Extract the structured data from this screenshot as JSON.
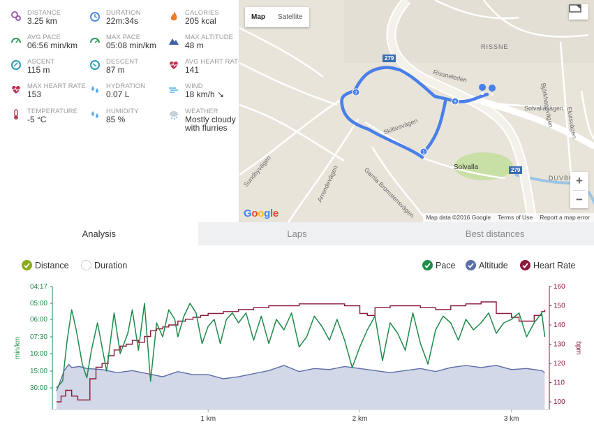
{
  "stats": [
    {
      "label": "DISTANCE",
      "value": "3.25 km",
      "icon": "distance-icon",
      "color": "#9a5fb0"
    },
    {
      "label": "DURATION",
      "value": "22m:34s",
      "icon": "duration-icon",
      "color": "#4a8de0"
    },
    {
      "label": "CALORIES",
      "value": "205 kcal",
      "icon": "calories-icon",
      "color": "#f07a2a"
    },
    {
      "label": "AVG PACE",
      "value": "06:56 min/km",
      "icon": "avg-pace-icon",
      "color": "#2f9a5a"
    },
    {
      "label": "MAX PACE",
      "value": "05:08 min/km",
      "icon": "max-pace-icon",
      "color": "#2f9a5a"
    },
    {
      "label": "MAX ALTITUDE",
      "value": "48 m",
      "icon": "altitude-icon",
      "color": "#3f5fa8"
    },
    {
      "label": "ASCENT",
      "value": "115 m",
      "icon": "ascent-icon",
      "color": "#2a9ab8"
    },
    {
      "label": "DESCENT",
      "value": "87 m",
      "icon": "descent-icon",
      "color": "#2a9ab8"
    },
    {
      "label": "AVG HEART RATE",
      "value": "141",
      "icon": "heart-icon",
      "color": "#c03050"
    },
    {
      "label": "MAX HEART RATE",
      "value": "153",
      "icon": "heart-rate-icon",
      "color": "#c03050"
    },
    {
      "label": "HYDRATION",
      "value": "0.07 L",
      "icon": "hydration-icon",
      "color": "#5aa8e8"
    },
    {
      "label": "WIND",
      "value": "18 km/h ↘",
      "icon": "wind-icon",
      "color": "#4ab0e0"
    },
    {
      "label": "TEMPERATURE",
      "value": "-5 °C",
      "icon": "thermometer-icon",
      "color": "#b04050"
    },
    {
      "label": "HUMIDITY",
      "value": "85 %",
      "icon": "humidity-icon",
      "color": "#5aa8e8"
    },
    {
      "label": "WEATHER",
      "value": "Mostly cloudy with flurries",
      "icon": "weather-icon",
      "color": "#8ab0d8"
    }
  ],
  "map": {
    "mode_map": "Map",
    "mode_satellite": "Satellite",
    "zoom_in": "+",
    "zoom_out": "−",
    "google": "Google",
    "footer": {
      "data": "Map data ©2016 Google",
      "terms": "Terms of Use",
      "report": "Report a map error"
    },
    "places": [
      "RISSNE",
      "Rissneleden",
      "Solvallavägen",
      "Björkhagsvägen",
      "Skiftesvägen",
      "Gamla Bromstensvägen",
      "Sundbyvägen",
      "Arrendevägen",
      "Solvalla",
      "DUVBO",
      "Ekvisvägen",
      "279",
      "279"
    ],
    "route_color": "#4a7fe8"
  },
  "tabs": [
    "Analysis",
    "Laps",
    "Best distances"
  ],
  "options": {
    "distance": "Distance",
    "duration": "Duration",
    "pace": "Pace",
    "altitude": "Altitude",
    "heart_rate": "Heart Rate"
  },
  "colors": {
    "pace": "#1f8a4a",
    "altitude": "#5a6fa8",
    "heart": "#8a1a3a",
    "distance_check": "#8aac1a"
  },
  "chart_data": {
    "type": "line",
    "x_unit": "km",
    "x_ticks": [
      "1 km",
      "2 km",
      "3 km"
    ],
    "x_tick_values": [
      1,
      2,
      3
    ],
    "xlim": [
      0,
      3.25
    ],
    "pace_axis": {
      "label": "min/km",
      "ticks": [
        "04:17",
        "05:00",
        "06:00",
        "07:30",
        "10:00",
        "15:00",
        "30:00"
      ]
    },
    "hr_axis": {
      "label": "bpm",
      "ticks": [
        "160",
        "150",
        "140",
        "130",
        "120",
        "110",
        "100"
      ],
      "range": [
        96,
        160
      ]
    },
    "series": [
      {
        "name": "Pace",
        "unit": "min/km (tick index)",
        "x": [
          0.0,
          0.04,
          0.07,
          0.1,
          0.13,
          0.17,
          0.2,
          0.23,
          0.27,
          0.33,
          0.38,
          0.42,
          0.47,
          0.5,
          0.54,
          0.58,
          0.62,
          0.66,
          0.7,
          0.74,
          0.78,
          0.8,
          0.84,
          0.88,
          0.92,
          0.96,
          1.0,
          1.04,
          1.08,
          1.12,
          1.16,
          1.2,
          1.25,
          1.3,
          1.35,
          1.4,
          1.45,
          1.5,
          1.55,
          1.6,
          1.65,
          1.7,
          1.75,
          1.8,
          1.85,
          1.9,
          1.95,
          2.0,
          2.05,
          2.1,
          2.15,
          2.2,
          2.25,
          2.3,
          2.35,
          2.4,
          2.45,
          2.5,
          2.55,
          2.6,
          2.65,
          2.7,
          2.75,
          2.8,
          2.85,
          2.9,
          2.95,
          3.0,
          3.05,
          3.1,
          3.15,
          3.2,
          3.22
        ],
        "values": [
          6,
          5.6,
          3.2,
          1.4,
          2.6,
          4.6,
          5.4,
          3.8,
          2.2,
          5.0,
          1.6,
          4.0,
          2.8,
          1.4,
          3.8,
          1.0,
          5.6,
          2.2,
          3.0,
          1.4,
          2.0,
          3.0,
          1.8,
          1.0,
          1.6,
          3.4,
          2.4,
          2.0,
          3.4,
          2.0,
          1.6,
          2.2,
          1.6,
          3.2,
          1.8,
          3.4,
          2.0,
          2.6,
          1.6,
          3.6,
          3.0,
          1.8,
          2.4,
          3.2,
          2.0,
          3.2,
          4.8,
          3.6,
          2.6,
          1.8,
          4.4,
          2.2,
          2.8,
          3.8,
          1.6,
          3.4,
          4.6,
          2.6,
          1.8,
          2.2,
          3.2,
          2.0,
          2.6,
          2.2,
          1.6,
          2.8,
          2.2,
          2.0,
          1.6,
          3.0,
          2.2,
          1.6,
          3.0
        ]
      },
      {
        "name": "Heart Rate",
        "unit": "bpm",
        "x": [
          0.0,
          0.03,
          0.06,
          0.1,
          0.14,
          0.18,
          0.22,
          0.26,
          0.3,
          0.34,
          0.38,
          0.42,
          0.46,
          0.5,
          0.54,
          0.58,
          0.62,
          0.66,
          0.7,
          0.74,
          0.8,
          0.85,
          0.9,
          0.95,
          1.0,
          1.1,
          1.2,
          1.3,
          1.4,
          1.5,
          1.6,
          1.7,
          1.8,
          1.9,
          2.0,
          2.05,
          2.1,
          2.2,
          2.3,
          2.4,
          2.5,
          2.6,
          2.7,
          2.8,
          2.9,
          3.0,
          3.05,
          3.1,
          3.15,
          3.2,
          3.22
        ],
        "values": [
          100,
          103,
          106,
          103,
          101,
          101,
          112,
          118,
          120,
          124,
          127,
          129,
          130,
          132,
          131,
          134,
          137,
          138,
          139,
          140,
          142,
          143,
          144,
          145,
          146,
          147,
          148,
          149,
          150,
          150,
          151,
          151,
          151,
          150,
          146,
          145,
          149,
          150,
          150,
          149,
          148,
          150,
          151,
          152,
          146,
          144,
          142,
          142,
          145,
          147,
          148
        ]
      },
      {
        "name": "Altitude",
        "unit": "m",
        "x": [
          0.0,
          0.05,
          0.08,
          0.1,
          0.15,
          0.2,
          0.3,
          0.4,
          0.5,
          0.6,
          0.7,
          0.8,
          0.9,
          1.0,
          1.1,
          1.2,
          1.3,
          1.4,
          1.5,
          1.6,
          1.7,
          1.8,
          1.9,
          2.0,
          2.1,
          2.2,
          2.3,
          2.4,
          2.5,
          2.6,
          2.7,
          2.8,
          2.9,
          3.0,
          3.1,
          3.2,
          3.22
        ],
        "values": [
          18,
          38,
          44,
          41,
          42,
          40,
          39,
          36,
          38,
          35,
          32,
          37,
          34,
          34,
          30,
          32,
          35,
          38,
          43,
          37,
          40,
          39,
          42,
          40,
          38,
          36,
          38,
          40,
          37,
          41,
          43,
          41,
          43,
          39,
          40,
          38,
          36
        ]
      }
    ]
  }
}
